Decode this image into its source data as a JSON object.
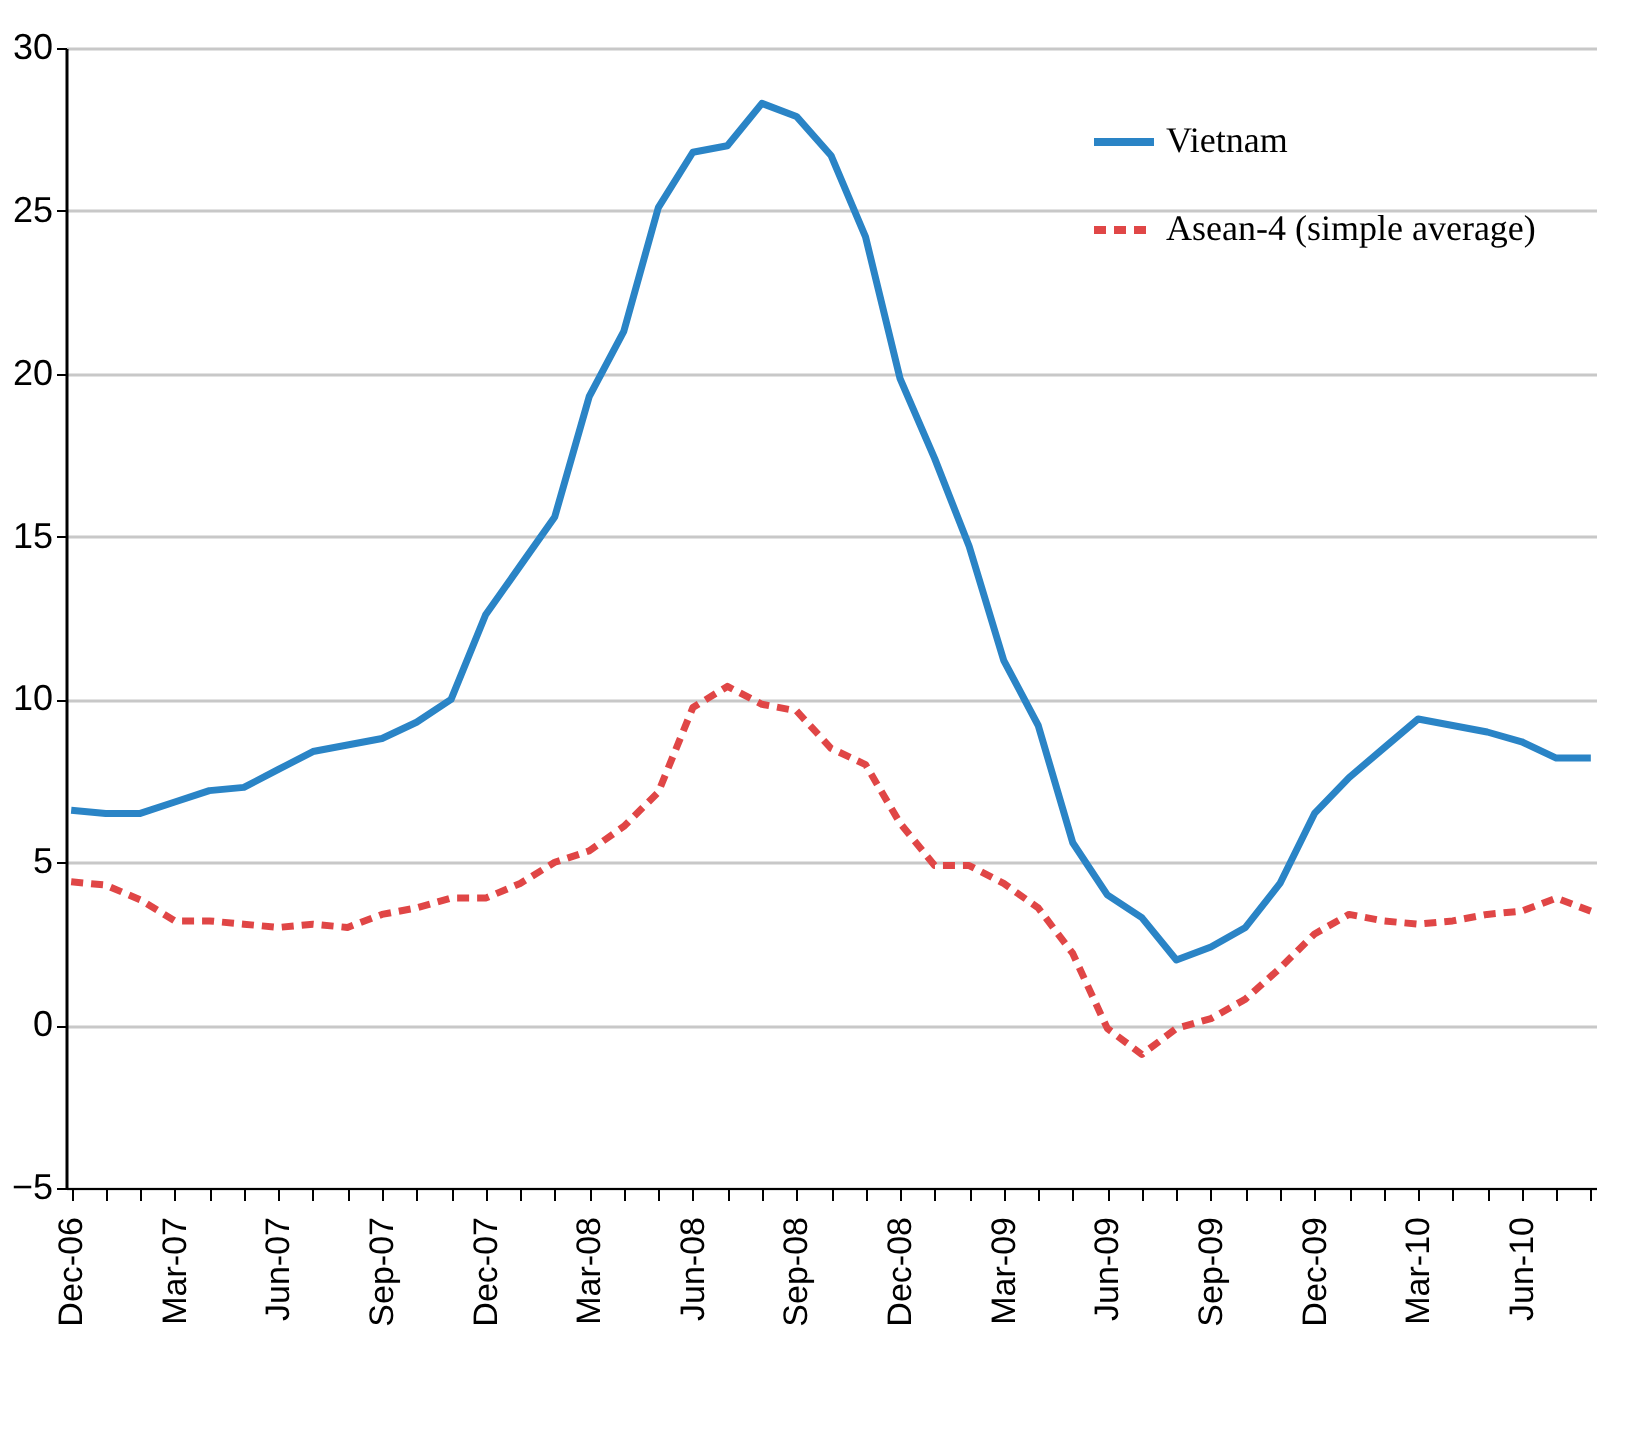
{
  "chart_data": {
    "type": "line",
    "categories": [
      "Dec-06",
      null,
      null,
      "Mar-07",
      null,
      null,
      "Jun-07",
      null,
      null,
      "Sep-07",
      null,
      null,
      "Dec-07",
      null,
      null,
      "Mar-08",
      null,
      null,
      "Jun-08",
      null,
      null,
      "Sep-08",
      null,
      null,
      "Dec-08",
      null,
      null,
      "Mar-09",
      null,
      null,
      "Jun-09",
      null,
      null,
      "Sep-09",
      null,
      null,
      "Dec-09",
      null,
      null,
      "Mar-10",
      null,
      null,
      "Jun-10",
      null,
      null
    ],
    "series": [
      {
        "name": "Vietnam",
        "color": "#2a84c6",
        "line_style": "solid",
        "values": [
          6.6,
          6.5,
          6.5,
          6.85,
          7.2,
          7.3,
          7.85,
          8.4,
          8.6,
          8.8,
          9.3,
          10.0,
          12.6,
          14.1,
          15.6,
          19.3,
          21.3,
          25.1,
          26.8,
          27.0,
          28.3,
          27.9,
          26.7,
          24.2,
          19.85,
          17.4,
          14.7,
          11.2,
          9.2,
          5.6,
          4.0,
          3.3,
          2.0,
          2.4,
          3.0,
          4.35,
          6.5,
          7.6,
          8.5,
          9.4,
          9.2,
          9.0,
          8.7,
          8.2,
          8.2
        ]
      },
      {
        "name": "Asean-4 (simple average)",
        "color": "#e04646",
        "line_style": "dashed",
        "values": [
          4.4,
          4.3,
          3.85,
          3.2,
          3.2,
          3.1,
          3.0,
          3.1,
          3.0,
          3.4,
          3.6,
          3.9,
          3.9,
          4.35,
          5.0,
          5.35,
          6.1,
          7.15,
          9.75,
          10.4,
          9.85,
          9.65,
          8.5,
          8.0,
          6.2,
          4.9,
          4.9,
          4.35,
          3.6,
          2.2,
          -0.1,
          -0.9,
          -0.1,
          0.2,
          0.8,
          1.75,
          2.8,
          3.4,
          3.2,
          3.1,
          3.2,
          3.4,
          3.5,
          3.9,
          3.5
        ]
      }
    ],
    "ylim": [
      -5,
      30
    ],
    "yticks": [
      -5,
      0,
      5,
      10,
      15,
      20,
      25,
      30
    ],
    "grid": "y",
    "legend": "top right"
  }
}
